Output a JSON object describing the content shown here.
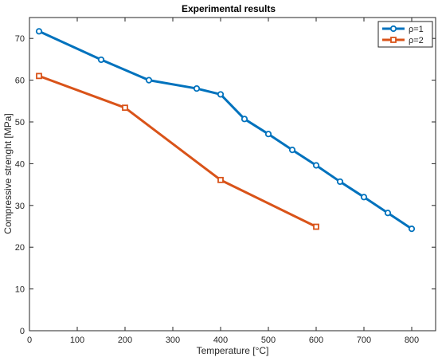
{
  "chart_data": {
    "type": "line",
    "title": "Experimental results",
    "xlabel": "Temperature [°C]",
    "ylabel": "Compressive strenght [MPa]",
    "xlim": [
      0,
      850
    ],
    "ylim": [
      0,
      75
    ],
    "xticks": [
      0,
      100,
      200,
      300,
      400,
      500,
      600,
      700,
      800
    ],
    "yticks": [
      0,
      10,
      20,
      30,
      40,
      50,
      60,
      70
    ],
    "grid": false,
    "legend": "top-right",
    "series": [
      {
        "name": "ρ=1",
        "color": "#0072BD",
        "marker": "circle",
        "x": [
          20,
          150,
          250,
          350,
          400,
          450,
          500,
          550,
          600,
          650,
          700,
          750,
          800
        ],
        "y": [
          71.7,
          64.9,
          60.0,
          58.0,
          56.6,
          50.7,
          47.1,
          43.3,
          39.6,
          35.7,
          32.0,
          28.2,
          24.4
        ]
      },
      {
        "name": "ρ=2",
        "color": "#D95319",
        "marker": "square",
        "x": [
          20,
          200,
          400,
          600
        ],
        "y": [
          61.0,
          53.4,
          36.1,
          24.9
        ]
      }
    ]
  }
}
